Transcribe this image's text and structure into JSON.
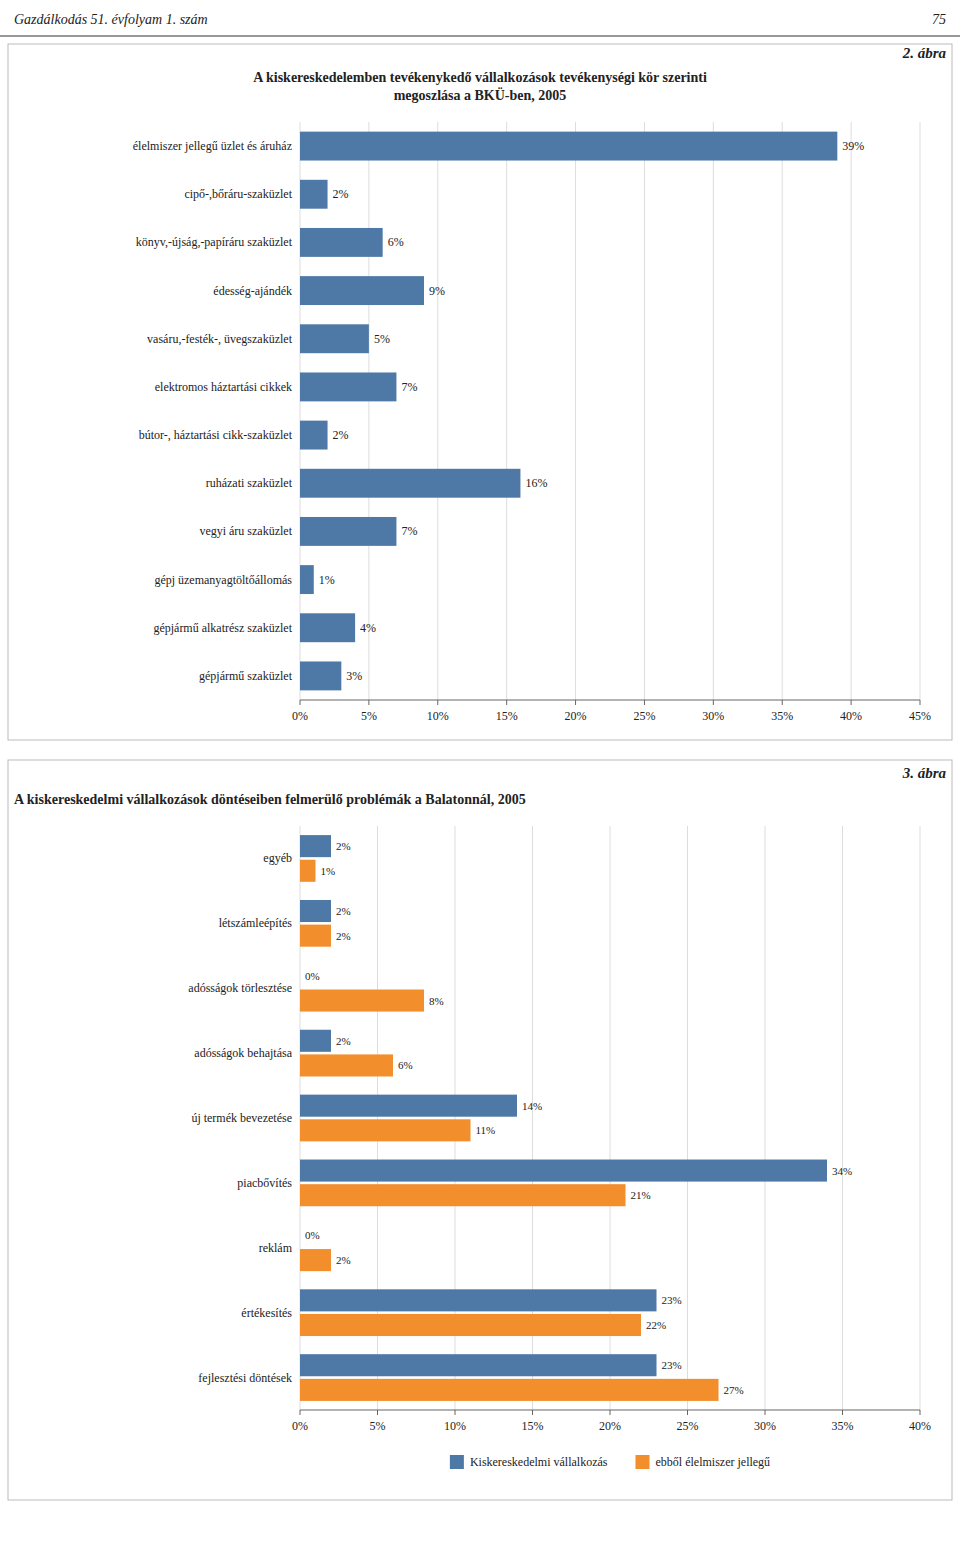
{
  "chart_data": [
    {
      "type": "bar",
      "orientation": "horizontal",
      "title": "A kiskereskedelemben tevékenykedő vállalkozások tevékenységi kör szerinti\nmegoszlása a BKÜ-ben, 2005",
      "subtitle": "2. ábra",
      "annotations": [
        "Gazdálkodás 51. évfolyam 1. szám",
        "75"
      ],
      "categories": [
        "élelmiszer jellegű üzlet és áruház",
        "cipő-,bőráru-szaküzlet",
        "könyv,-újság,-papíráru szaküzlet",
        "édesség-ajándék",
        "vasáru,-festék-, üvegszaküzlet",
        "elektromos háztartási cikkek",
        "bútor-, háztartási cikk-szaküzlet",
        "ruházati szaküzlet",
        "vegyi áru szaküzlet",
        "gépj üzemanyagtöltőállomás",
        "gépjármű alkatrész szaküzlet",
        "gépjármű szaküzlet"
      ],
      "values": [
        39,
        2,
        6,
        9,
        5,
        7,
        2,
        16,
        7,
        1,
        4,
        3
      ],
      "value_labels": [
        "39%",
        "2%",
        "6%",
        "9%",
        "5%",
        "7%",
        "2%",
        "16%",
        "7%",
        "1%",
        "4%",
        "3%"
      ],
      "data_labels": true,
      "color": "#4e79a7",
      "xlim": [
        0,
        45
      ],
      "xticks": [
        {
          "value": 0,
          "label": "0%"
        },
        {
          "value": 5,
          "label": "5%"
        },
        {
          "value": 10,
          "label": "10%"
        },
        {
          "value": 15,
          "label": "15%"
        },
        {
          "value": 20,
          "label": "20%"
        },
        {
          "value": 25,
          "label": "25%"
        },
        {
          "value": 30,
          "label": "30%"
        },
        {
          "value": 35,
          "label": "35%"
        },
        {
          "value": 40,
          "label": "40%"
        },
        {
          "value": 45,
          "label": "45%"
        }
      ],
      "grid": true
    },
    {
      "type": "bar",
      "orientation": "horizontal",
      "title": "A kiskereskedelmi vállalkozások döntéseiben felmerülő problémák a Balatonnál, 2005",
      "subtitle": "3. ábra",
      "categories": [
        "egyéb",
        "létszámleépítés",
        "adósságok törlesztése",
        "adósságok behajtása",
        "új termék bevezetése",
        "piacbővítés",
        "reklám",
        "értékesítés",
        "fejlesztési döntések"
      ],
      "series": [
        {
          "name": "Kiskereskedelmi vállalkozás",
          "color": "#4e79a7",
          "values": [
            2,
            2,
            0,
            2,
            14,
            34,
            0,
            23,
            23
          ],
          "value_labels": [
            "2%",
            "2%",
            "0%",
            "2%",
            "14%",
            "34%",
            "0%",
            "23%",
            "23%"
          ]
        },
        {
          "name": "ebből élelmiszer jellegű",
          "color": "#f28e2b",
          "values": [
            1,
            2,
            8,
            6,
            11,
            21,
            2,
            22,
            27
          ],
          "value_labels": [
            "1%",
            "2%",
            "8%",
            "6%",
            "11%",
            "21%",
            "2%",
            "22%",
            "27%"
          ]
        }
      ],
      "data_labels": true,
      "xlim": [
        0,
        40
      ],
      "xticks": [
        {
          "value": 0,
          "label": "0%"
        },
        {
          "value": 5,
          "label": "5%"
        },
        {
          "value": 10,
          "label": "10%"
        },
        {
          "value": 15,
          "label": "15%"
        },
        {
          "value": 20,
          "label": "20%"
        },
        {
          "value": 25,
          "label": "25%"
        },
        {
          "value": 30,
          "label": "30%"
        },
        {
          "value": 35,
          "label": "35%"
        },
        {
          "value": 40,
          "label": "40%"
        }
      ],
      "grid": true,
      "legend": "bottom"
    }
  ]
}
